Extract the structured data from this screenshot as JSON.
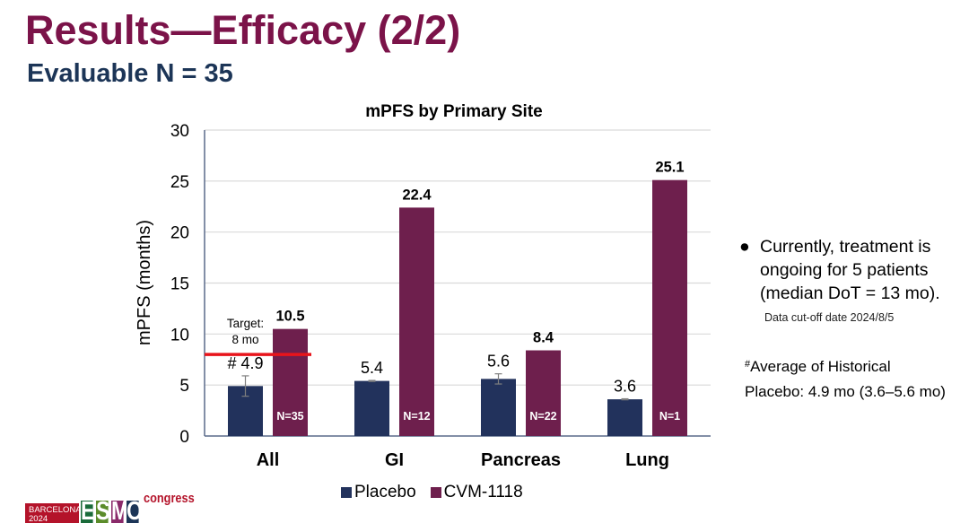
{
  "slide": {
    "title": "Results—Efficacy (2/2)",
    "subtitle": "Evaluable N = 35"
  },
  "side_note": {
    "bullet": "●",
    "text": "Currently, treatment is ongoing for 5 patients (median DoT = 13 mo).",
    "cutoff": "Data cut-off date 2024/8/5"
  },
  "footnote": {
    "marker": "#",
    "line1": "Average of Historical",
    "line2": "Placebo: 4.9 mo (3.6–5.6 mo)"
  },
  "logo": {
    "city": "BARCELONA",
    "year": "2024",
    "letters": [
      "E",
      "S",
      "M",
      "O"
    ],
    "suffix": "congress",
    "colors": [
      "#1a6b3a",
      "#5b8c2a",
      "#8a2a6a",
      "#1c3557"
    ]
  },
  "colors": {
    "placebo": "#22325c",
    "cvm": "#6e1f4d",
    "target_line": "#e8141b",
    "title": "#7b1349",
    "subtitle": "#1c3557"
  },
  "chart_data": {
    "type": "bar",
    "title": "mPFS by Primary Site",
    "xlabel": "",
    "ylabel": "mPFS (months)",
    "ylim": [
      0,
      30
    ],
    "yticks": [
      0,
      5,
      10,
      15,
      20,
      25,
      30
    ],
    "grid": true,
    "legend_position": "bottom",
    "categories": [
      "All",
      "GI",
      "Pancreas",
      "Lung"
    ],
    "series": [
      {
        "name": "Placebo",
        "values": [
          4.9,
          5.4,
          5.6,
          3.6
        ],
        "labels": [
          "# 4.9",
          "5.4",
          "5.6",
          "3.6"
        ],
        "error_low": [
          3.9,
          5.35,
          5.1,
          3.55
        ],
        "error_high": [
          5.9,
          5.45,
          6.1,
          3.65
        ]
      },
      {
        "name": "CVM-1118",
        "values": [
          10.5,
          22.4,
          8.4,
          25.1
        ],
        "labels": [
          "10.5",
          "22.4",
          "8.4",
          "25.1"
        ],
        "n_labels": [
          "N=35",
          "N=12",
          "N=22",
          "N=1"
        ]
      }
    ],
    "reference_line": {
      "value": 8,
      "label_line1": "Target:",
      "label_line2": "8 mo",
      "category": "All"
    }
  }
}
